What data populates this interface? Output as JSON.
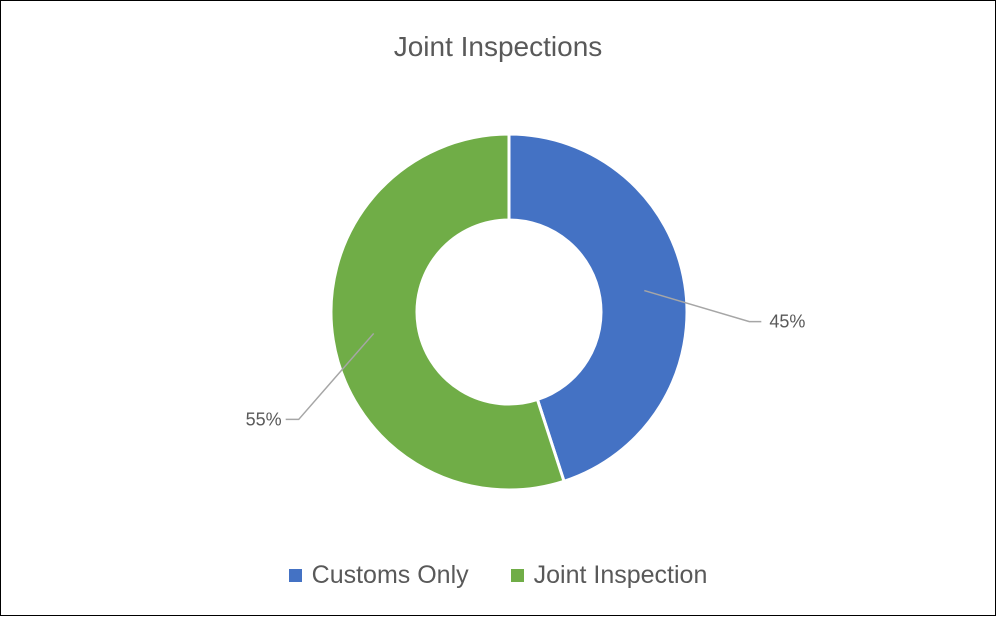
{
  "chart_data": {
    "type": "pie",
    "title": "Joint Inspections",
    "categories": [
      "Customs Only",
      "Joint Inspection"
    ],
    "values": [
      45,
      55
    ],
    "data_labels": [
      "45%",
      "55%"
    ],
    "colors": [
      "#4472C4",
      "#70AD47"
    ],
    "donut": true,
    "legend_position": "bottom"
  }
}
